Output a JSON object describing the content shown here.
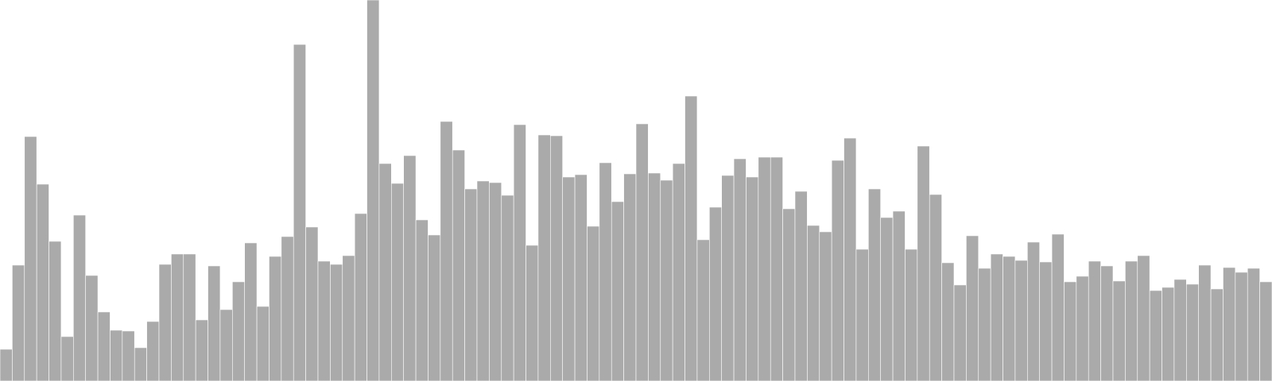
{
  "chart_data": {
    "type": "bar",
    "title": "",
    "xlabel": "",
    "ylabel": "",
    "bar_color": "#aaaaaa",
    "bar_edge_color": "#ffffff",
    "ylim": [
      0,
      480
    ],
    "values": [
      40,
      146,
      308,
      248,
      176,
      56,
      209,
      133,
      87,
      64,
      63,
      42,
      75,
      147,
      160,
      160,
      77,
      145,
      90,
      125,
      174,
      94,
      157,
      182,
      424,
      194,
      151,
      147,
      158,
      211,
      480,
      274,
      249,
      284,
      203,
      184,
      327,
      291,
      242,
      252,
      250,
      234,
      323,
      171,
      310,
      309,
      257,
      260,
      195,
      275,
      226,
      261,
      324,
      262,
      253,
      274,
      359,
      178,
      219,
      259,
      280,
      257,
      282,
      282,
      217,
      239,
      196,
      188,
      278,
      306,
      166,
      242,
      206,
      214,
      166,
      296,
      235,
      149,
      121,
      183,
      142,
      160,
      157,
      152,
      175,
      150,
      185,
      125,
      132,
      151,
      145,
      126,
      151,
      158,
      114,
      118,
      128,
      122,
      146,
      116,
      143,
      137,
      142,
      125
    ]
  }
}
